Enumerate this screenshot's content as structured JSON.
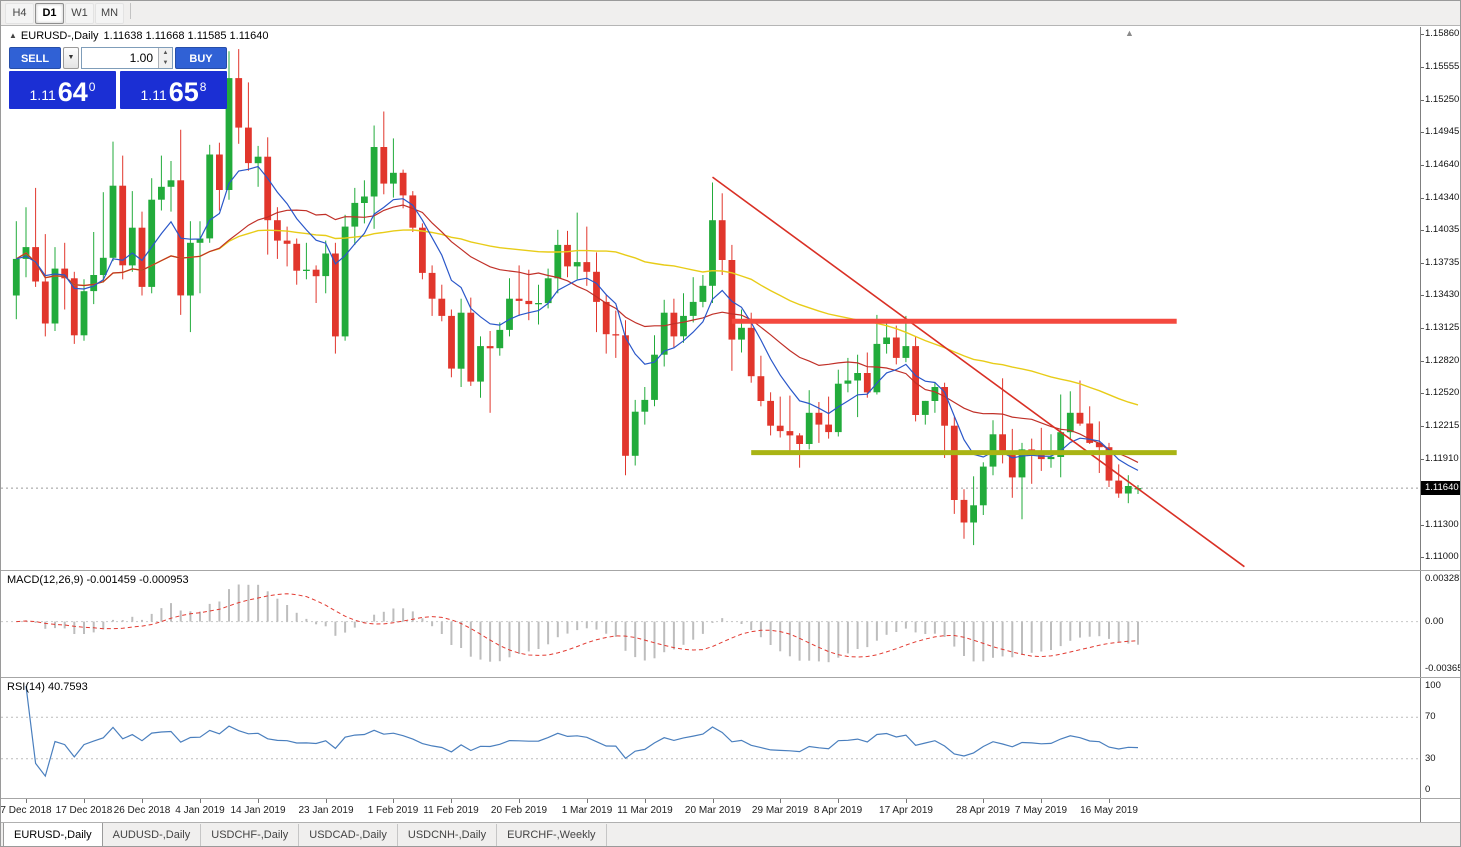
{
  "window_controls": {
    "timeframes": [
      {
        "label": "H4",
        "active": false
      },
      {
        "label": "D1",
        "active": true
      },
      {
        "label": "W1",
        "active": false
      },
      {
        "label": "MN",
        "active": false
      }
    ]
  },
  "quote_header": {
    "collapse_arrow": "▲",
    "symbol_title": "EURUSD-,Daily",
    "ohlc": "1.11638 1.11668 1.11585 1.11640",
    "shift_marker": "▲"
  },
  "trade_panel": {
    "sell_label": "SELL",
    "buy_label": "BUY",
    "volume": "1.00",
    "dropdown_arrow": "▼",
    "spin_up": "▲",
    "spin_down": "▼",
    "sell_price": {
      "big": "1.11",
      "pips": "64",
      "sup": "0"
    },
    "buy_price": {
      "big": "1.11",
      "pips": "65",
      "sup": "8"
    }
  },
  "colors": {
    "candle_up": "#22ab3b",
    "candle_down": "#e1362c",
    "ma_fast": "#2a57c9",
    "ma_mid": "#c03028",
    "ma_slow": "#e8cc18",
    "trendline": "#d93025",
    "resistance": "#f4493f",
    "support": "#a9b414",
    "macd_hist": "#bdbdbd",
    "macd_signal": "#e23b32",
    "rsi_line": "#4a7fbe",
    "bid_line": "#9a9a9a",
    "button_blue": "#3061d5",
    "price_box_blue": "#1b2fd4"
  },
  "price_axis": {
    "values": [
      1.1586,
      1.15555,
      1.1525,
      1.14945,
      1.1464,
      1.1434,
      1.14035,
      1.13735,
      1.1343,
      1.13125,
      1.1282,
      1.1252,
      1.12215,
      1.1191,
      1.11605,
      1.113,
      1.11
    ],
    "bid_label": "1.11640",
    "bid_value": 1.1164
  },
  "chart_data": {
    "type": "candlestick",
    "title": "EURUSD-,Daily",
    "ohlc_display": "1.11638 1.11668 1.11585 1.11640",
    "ylim": [
      1.10888,
      1.15925
    ],
    "x_range": "6 Dec 2018 - 21 May 2019",
    "candles": [
      [
        1.1343,
        1.1412,
        1.1321,
        1.1377
      ],
      [
        1.1377,
        1.1425,
        1.136,
        1.1388
      ],
      [
        1.1388,
        1.1443,
        1.1351,
        1.1356
      ],
      [
        1.1356,
        1.14,
        1.1305,
        1.1317
      ],
      [
        1.1317,
        1.1388,
        1.131,
        1.1368
      ],
      [
        1.1368,
        1.1392,
        1.133,
        1.1359
      ],
      [
        1.1359,
        1.1365,
        1.1298,
        1.1306
      ],
      [
        1.1306,
        1.1358,
        1.1301,
        1.1347
      ],
      [
        1.1347,
        1.1402,
        1.1335,
        1.1362
      ],
      [
        1.1362,
        1.1439,
        1.1355,
        1.1378
      ],
      [
        1.1378,
        1.1486,
        1.1375,
        1.1445
      ],
      [
        1.1445,
        1.1473,
        1.1358,
        1.1371
      ],
      [
        1.1371,
        1.144,
        1.1365,
        1.1406
      ],
      [
        1.1406,
        1.1421,
        1.1343,
        1.1351
      ],
      [
        1.1351,
        1.1452,
        1.1345,
        1.1432
      ],
      [
        1.1432,
        1.1473,
        1.1422,
        1.1444
      ],
      [
        1.1444,
        1.1468,
        1.1421,
        1.145
      ],
      [
        1.145,
        1.1497,
        1.1325,
        1.1343
      ],
      [
        1.1343,
        1.1412,
        1.1309,
        1.1392
      ],
      [
        1.1392,
        1.1412,
        1.1345,
        1.1396
      ],
      [
        1.1396,
        1.1483,
        1.1392,
        1.1474
      ],
      [
        1.1474,
        1.1485,
        1.1422,
        1.1441
      ],
      [
        1.1441,
        1.157,
        1.1432,
        1.1545
      ],
      [
        1.1545,
        1.1572,
        1.1484,
        1.1499
      ],
      [
        1.1499,
        1.1541,
        1.1459,
        1.1466
      ],
      [
        1.1466,
        1.1482,
        1.1444,
        1.1472
      ],
      [
        1.1472,
        1.149,
        1.1381,
        1.1413
      ],
      [
        1.1413,
        1.1425,
        1.1377,
        1.1394
      ],
      [
        1.1394,
        1.1407,
        1.137,
        1.1391
      ],
      [
        1.1391,
        1.1396,
        1.1353,
        1.1366
      ],
      [
        1.1366,
        1.1392,
        1.1358,
        1.1367
      ],
      [
        1.1367,
        1.1371,
        1.1336,
        1.1361
      ],
      [
        1.1361,
        1.1394,
        1.1345,
        1.1382
      ],
      [
        1.1382,
        1.1392,
        1.1289,
        1.1305
      ],
      [
        1.1305,
        1.1418,
        1.1301,
        1.1407
      ],
      [
        1.1407,
        1.1443,
        1.139,
        1.1429
      ],
      [
        1.1429,
        1.145,
        1.141,
        1.1435
      ],
      [
        1.1435,
        1.1501,
        1.1405,
        1.1481
      ],
      [
        1.1481,
        1.1514,
        1.1437,
        1.1447
      ],
      [
        1.1447,
        1.1489,
        1.1434,
        1.1457
      ],
      [
        1.1457,
        1.146,
        1.1424,
        1.1436
      ],
      [
        1.1436,
        1.144,
        1.1402,
        1.1406
      ],
      [
        1.1406,
        1.141,
        1.1358,
        1.1364
      ],
      [
        1.1364,
        1.1371,
        1.1324,
        1.134
      ],
      [
        1.134,
        1.1353,
        1.1319,
        1.1324
      ],
      [
        1.1324,
        1.133,
        1.1267,
        1.1275
      ],
      [
        1.1275,
        1.134,
        1.1258,
        1.1327
      ],
      [
        1.1327,
        1.1341,
        1.1259,
        1.1263
      ],
      [
        1.1263,
        1.1305,
        1.1248,
        1.1296
      ],
      [
        1.1296,
        1.131,
        1.1234,
        1.1294
      ],
      [
        1.1294,
        1.1318,
        1.1287,
        1.1311
      ],
      [
        1.1311,
        1.1359,
        1.1305,
        1.134
      ],
      [
        1.134,
        1.1371,
        1.1324,
        1.1338
      ],
      [
        1.1338,
        1.1367,
        1.132,
        1.1335
      ],
      [
        1.1335,
        1.1353,
        1.1316,
        1.1336
      ],
      [
        1.1336,
        1.1368,
        1.1331,
        1.1359
      ],
      [
        1.1359,
        1.1404,
        1.1345,
        1.139
      ],
      [
        1.139,
        1.1403,
        1.136,
        1.137
      ],
      [
        1.137,
        1.142,
        1.1358,
        1.1374
      ],
      [
        1.1374,
        1.1407,
        1.1352,
        1.1365
      ],
      [
        1.1365,
        1.1383,
        1.1309,
        1.1337
      ],
      [
        1.1337,
        1.1344,
        1.1289,
        1.1307
      ],
      [
        1.1307,
        1.1329,
        1.1285,
        1.1306
      ],
      [
        1.1306,
        1.132,
        1.1176,
        1.1194
      ],
      [
        1.1194,
        1.1246,
        1.1185,
        1.1235
      ],
      [
        1.1235,
        1.1258,
        1.1223,
        1.1246
      ],
      [
        1.1246,
        1.1306,
        1.124,
        1.1288
      ],
      [
        1.1288,
        1.1339,
        1.1277,
        1.1327
      ],
      [
        1.1327,
        1.134,
        1.1294,
        1.1305
      ],
      [
        1.1305,
        1.1345,
        1.1299,
        1.1324
      ],
      [
        1.1324,
        1.136,
        1.1318,
        1.1337
      ],
      [
        1.1337,
        1.1362,
        1.1332,
        1.1352
      ],
      [
        1.1352,
        1.1448,
        1.1336,
        1.1413
      ],
      [
        1.1413,
        1.1438,
        1.1362,
        1.1376
      ],
      [
        1.1376,
        1.139,
        1.1273,
        1.1302
      ],
      [
        1.1302,
        1.133,
        1.129,
        1.1313
      ],
      [
        1.1313,
        1.1327,
        1.1262,
        1.1268
      ],
      [
        1.1268,
        1.1287,
        1.124,
        1.1245
      ],
      [
        1.1245,
        1.1253,
        1.1213,
        1.1222
      ],
      [
        1.1222,
        1.1249,
        1.1211,
        1.1217
      ],
      [
        1.1217,
        1.125,
        1.1199,
        1.1213
      ],
      [
        1.1213,
        1.1215,
        1.1183,
        1.1205
      ],
      [
        1.1205,
        1.1255,
        1.12,
        1.1234
      ],
      [
        1.1234,
        1.1244,
        1.1206,
        1.1223
      ],
      [
        1.1223,
        1.1249,
        1.121,
        1.1216
      ],
      [
        1.1216,
        1.1274,
        1.1212,
        1.1261
      ],
      [
        1.1261,
        1.1285,
        1.1253,
        1.1264
      ],
      [
        1.1264,
        1.1288,
        1.123,
        1.1271
      ],
      [
        1.1271,
        1.129,
        1.1248,
        1.1253
      ],
      [
        1.1253,
        1.1325,
        1.1251,
        1.1298
      ],
      [
        1.1298,
        1.1318,
        1.1289,
        1.1304
      ],
      [
        1.1304,
        1.1315,
        1.1279,
        1.1285
      ],
      [
        1.1285,
        1.1324,
        1.1281,
        1.1296
      ],
      [
        1.1296,
        1.1305,
        1.1226,
        1.1232
      ],
      [
        1.1232,
        1.1245,
        1.1223,
        1.1245
      ],
      [
        1.1245,
        1.1262,
        1.1234,
        1.1258
      ],
      [
        1.1258,
        1.1262,
        1.1192,
        1.1222
      ],
      [
        1.1222,
        1.123,
        1.114,
        1.1153
      ],
      [
        1.1153,
        1.1163,
        1.1117,
        1.1132
      ],
      [
        1.1132,
        1.1175,
        1.1111,
        1.1148
      ],
      [
        1.1148,
        1.1188,
        1.1139,
        1.1184
      ],
      [
        1.1184,
        1.1227,
        1.1176,
        1.1214
      ],
      [
        1.1214,
        1.1266,
        1.1187,
        1.1196
      ],
      [
        1.1196,
        1.1219,
        1.1155,
        1.1174
      ],
      [
        1.1174,
        1.1206,
        1.1135,
        1.12
      ],
      [
        1.12,
        1.121,
        1.1168,
        1.1197
      ],
      [
        1.1197,
        1.122,
        1.118,
        1.1191
      ],
      [
        1.1191,
        1.1214,
        1.1183,
        1.1193
      ],
      [
        1.1193,
        1.1251,
        1.1174,
        1.1216
      ],
      [
        1.1216,
        1.1254,
        1.1209,
        1.1234
      ],
      [
        1.1234,
        1.1264,
        1.1222,
        1.1224
      ],
      [
        1.1224,
        1.124,
        1.1205,
        1.1206
      ],
      [
        1.1206,
        1.1226,
        1.1178,
        1.1202
      ],
      [
        1.1202,
        1.1206,
        1.1165,
        1.1171
      ],
      [
        1.1171,
        1.1186,
        1.1155,
        1.1159
      ],
      [
        1.1159,
        1.1176,
        1.115,
        1.1166
      ],
      [
        1.11638,
        1.11668,
        1.11585,
        1.1164
      ]
    ],
    "x_labels": [
      {
        "i": 1,
        "t": "7 Dec 2018"
      },
      {
        "i": 7,
        "t": "17 Dec 2018"
      },
      {
        "i": 13,
        "t": "26 Dec 2018"
      },
      {
        "i": 19,
        "t": "4 Jan 2019"
      },
      {
        "i": 25,
        "t": "14 Jan 2019"
      },
      {
        "i": 32,
        "t": "23 Jan 2019"
      },
      {
        "i": 39,
        "t": "1 Feb 2019"
      },
      {
        "i": 45,
        "t": "11 Feb 2019"
      },
      {
        "i": 52,
        "t": "20 Feb 2019"
      },
      {
        "i": 59,
        "t": "1 Mar 2019"
      },
      {
        "i": 65,
        "t": "11 Mar 2019"
      },
      {
        "i": 72,
        "t": "20 Mar 2019"
      },
      {
        "i": 79,
        "t": "29 Mar 2019"
      },
      {
        "i": 85,
        "t": "8 Apr 2019"
      },
      {
        "i": 92,
        "t": "17 Apr 2019"
      },
      {
        "i": 100,
        "t": "28 Apr 2019"
      },
      {
        "i": 106,
        "t": "7 May 2019"
      },
      {
        "i": 113,
        "t": "16 May 2019"
      }
    ],
    "moving_averages": [
      {
        "type": "ema",
        "period": 8,
        "color": "#2a57c9"
      },
      {
        "type": "sma",
        "period": 21,
        "color": "#c03028"
      },
      {
        "type": "sma",
        "period": 55,
        "color": "#e8cc18"
      }
    ],
    "overlays": {
      "trendline": {
        "i1": 72,
        "p1": 1.1453,
        "i2": 127,
        "p2": 1.1091
      },
      "resistance": {
        "price": 1.1319,
        "i1": 74,
        "i2": 120
      },
      "support": {
        "price": 1.1197,
        "i1": 76,
        "i2": 120
      }
    },
    "indicators": [
      {
        "name": "MACD",
        "label": "MACD(12,26,9) -0.001459 -0.000953",
        "values": [
          -0.001459,
          -0.000953
        ],
        "axis": [
          {
            "v": 0.003287,
            "t": "0.003287"
          },
          {
            "v": 0,
            "t": "0.00"
          },
          {
            "v": -0.003659,
            "t": "-0.003659"
          }
        ]
      },
      {
        "name": "RSI",
        "label": "RSI(14) 40.7593",
        "value": 40.7593,
        "levels": [
          30,
          70
        ],
        "axis": [
          {
            "v": 100,
            "t": "100"
          },
          {
            "v": 70,
            "t": "70"
          },
          {
            "v": 30,
            "t": "30"
          },
          {
            "v": 0,
            "t": "0"
          }
        ]
      }
    ]
  },
  "bottom_tabs": [
    {
      "label": "EURUSD-,Daily",
      "active": true
    },
    {
      "label": "AUDUSD-,Daily",
      "active": false
    },
    {
      "label": "USDCHF-,Daily",
      "active": false
    },
    {
      "label": "USDCAD-,Daily",
      "active": false
    },
    {
      "label": "USDCNH-,Daily",
      "active": false
    },
    {
      "label": "EURCHF-,Weekly",
      "active": false
    }
  ]
}
